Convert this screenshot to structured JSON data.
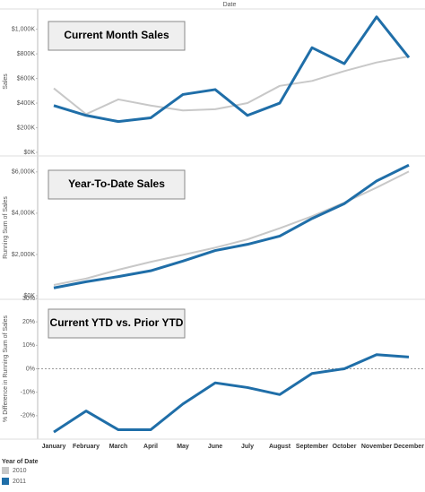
{
  "chart_data": {
    "type": "line",
    "x_label": "Date",
    "categories": [
      "January",
      "February",
      "March",
      "April",
      "May",
      "June",
      "July",
      "August",
      "September",
      "October",
      "November",
      "December"
    ],
    "legend": {
      "title": "Year of Date",
      "items": [
        {
          "name": "2010",
          "color": "#c8c8c8"
        },
        {
          "name": "2011",
          "color": "#1f6ea8"
        }
      ]
    },
    "panels": [
      {
        "title": "Current Month Sales",
        "ylabel": "Sales",
        "ylim": [
          0,
          1150000
        ],
        "yticks": [
          {
            "value": 0,
            "label": "$0K"
          },
          {
            "value": 200000,
            "label": "$200K"
          },
          {
            "value": 400000,
            "label": "$400K"
          },
          {
            "value": 600000,
            "label": "$600K"
          },
          {
            "value": 800000,
            "label": "$800K"
          },
          {
            "value": 1000000,
            "label": "$1,000K"
          }
        ],
        "zero_line": false,
        "series": [
          {
            "color": "#c8c8c8",
            "values": [
              520000,
              310000,
              430000,
              380000,
              340000,
              350000,
              400000,
              540000,
              580000,
              660000,
              730000,
              780000
            ]
          },
          {
            "color": "#1f6ea8",
            "values": [
              380000,
              300000,
              250000,
              280000,
              470000,
              510000,
              300000,
              400000,
              850000,
              720000,
              1100000,
              770000
            ]
          }
        ]
      },
      {
        "title": "Year-To-Date Sales",
        "ylabel": "Running Sum of Sales",
        "ylim": [
          0,
          6600000
        ],
        "yticks": [
          {
            "value": 0,
            "label": "$0K"
          },
          {
            "value": 2000000,
            "label": "$2,000K"
          },
          {
            "value": 4000000,
            "label": "$4,000K"
          },
          {
            "value": 6000000,
            "label": "$6,000K"
          }
        ],
        "zero_line": false,
        "series": [
          {
            "color": "#c8c8c8",
            "values": [
              520000,
              830000,
              1260000,
              1640000,
              1980000,
              2330000,
              2730000,
              3270000,
              3850000,
              4510000,
              5240000,
              6020000
            ]
          },
          {
            "color": "#1f6ea8",
            "values": [
              380000,
              680000,
              930000,
              1210000,
              1680000,
              2190000,
              2490000,
              2890000,
              3740000,
              4460000,
              5560000,
              6330000
            ]
          }
        ]
      },
      {
        "title": "Current YTD vs. Prior YTD",
        "ylabel": "% Difference in Running Sum of Sales",
        "ylim": [
          -30,
          30
        ],
        "yticks": [
          {
            "value": -20,
            "label": "-20%"
          },
          {
            "value": -10,
            "label": "-10%"
          },
          {
            "value": 0,
            "label": "0%"
          },
          {
            "value": 10,
            "label": "10%"
          },
          {
            "value": 20,
            "label": "20%"
          },
          {
            "value": 30,
            "label": "30%"
          }
        ],
        "zero_line": true,
        "series": [
          {
            "color": "#1f6ea8",
            "values": [
              -27,
              -18,
              -26,
              -26,
              -15,
              -6,
              -8,
              -11,
              -2,
              0,
              6,
              5
            ]
          }
        ]
      }
    ]
  }
}
